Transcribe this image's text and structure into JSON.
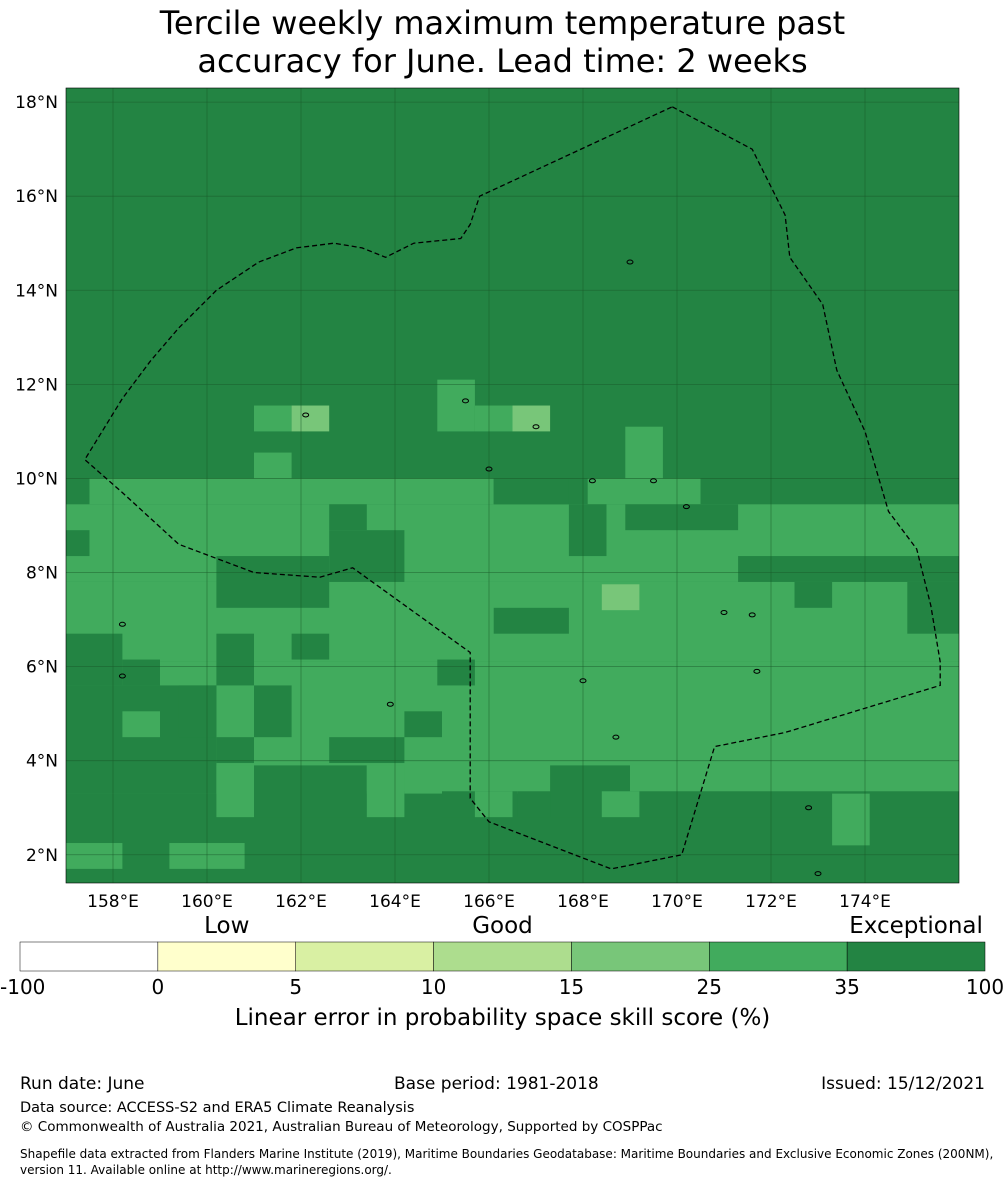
{
  "title": {
    "line1": "Tercile weekly maximum temperature past",
    "line2": "accuracy for June. Lead time: 2 weeks"
  },
  "map": {
    "lon_range": [
      157.0,
      176.0
    ],
    "lat_range": [
      1.4,
      18.3
    ],
    "lon_ticks": [
      "158°E",
      "160°E",
      "162°E",
      "164°E",
      "166°E",
      "168°E",
      "170°E",
      "172°E",
      "174°E"
    ],
    "lat_ticks": [
      "18°N",
      "16°N",
      "14°N",
      "12°N",
      "10°N",
      "8°N",
      "6°N",
      "4°N",
      "2°N"
    ],
    "grid": true,
    "background_category": 6,
    "eez_boundary_lonlat": [
      [
        169.9,
        17.9
      ],
      [
        171.6,
        17.0
      ],
      [
        172.3,
        15.6
      ],
      [
        172.4,
        14.7
      ],
      [
        173.1,
        13.7
      ],
      [
        173.4,
        12.3
      ],
      [
        174.0,
        11.0
      ],
      [
        174.5,
        9.3
      ],
      [
        175.1,
        8.5
      ],
      [
        175.4,
        7.3
      ],
      [
        175.6,
        6.1
      ],
      [
        175.6,
        5.6
      ],
      [
        172.3,
        4.6
      ],
      [
        170.8,
        4.3
      ],
      [
        170.1,
        2.0
      ],
      [
        168.6,
        1.7
      ],
      [
        166.0,
        2.7
      ],
      [
        165.6,
        3.2
      ],
      [
        165.6,
        6.3
      ],
      [
        163.1,
        8.1
      ],
      [
        162.4,
        7.9
      ],
      [
        161.0,
        8.0
      ],
      [
        159.4,
        8.6
      ],
      [
        158.2,
        9.7
      ],
      [
        157.4,
        10.4
      ],
      [
        158.2,
        11.7
      ],
      [
        158.8,
        12.5
      ],
      [
        159.4,
        13.2
      ],
      [
        160.2,
        14.0
      ],
      [
        161.1,
        14.6
      ],
      [
        161.9,
        14.9
      ],
      [
        162.7,
        15.0
      ],
      [
        163.3,
        14.9
      ],
      [
        163.8,
        14.7
      ],
      [
        164.4,
        15.0
      ],
      [
        165.4,
        15.1
      ],
      [
        165.6,
        15.4
      ],
      [
        165.8,
        16.0
      ],
      [
        169.9,
        17.9
      ]
    ],
    "cells": [
      {
        "lon": 161.0,
        "lat": 11.0,
        "w": 0.8,
        "h": 0.55,
        "category": 5
      },
      {
        "lon": 161.8,
        "lat": 11.0,
        "w": 0.8,
        "h": 0.55,
        "category": 4
      },
      {
        "lon": 164.9,
        "lat": 11.0,
        "w": 0.8,
        "h": 1.1,
        "category": 5
      },
      {
        "lon": 165.7,
        "lat": 11.0,
        "w": 0.8,
        "h": 0.55,
        "category": 5
      },
      {
        "lon": 166.5,
        "lat": 11.0,
        "w": 0.8,
        "h": 0.55,
        "category": 4
      },
      {
        "lon": 168.9,
        "lat": 10.0,
        "w": 0.8,
        "h": 1.1,
        "category": 5
      },
      {
        "lon": 161.0,
        "lat": 10.0,
        "w": 0.8,
        "h": 0.55,
        "category": 5
      },
      {
        "lon": 168.1,
        "lat": 9.45,
        "w": 2.4,
        "h": 0.55,
        "category": 5
      },
      {
        "lon": 157.5,
        "lat": 9.45,
        "w": 8.6,
        "h": 0.55,
        "category": 5
      },
      {
        "lon": 157.0,
        "lat": 7.8,
        "w": 19.0,
        "h": 1.65,
        "category": 5
      },
      {
        "lon": 157.0,
        "lat": 6.1,
        "w": 19.0,
        "h": 1.7,
        "category": 5
      },
      {
        "lon": 157.0,
        "lat": 3.3,
        "w": 19.0,
        "h": 2.8,
        "category": 5
      },
      {
        "lon": 157.0,
        "lat": 2.2,
        "w": 19.0,
        "h": 1.1,
        "category": 5
      },
      {
        "lon": 168.4,
        "lat": 7.2,
        "w": 0.8,
        "h": 0.55,
        "category": 4
      }
    ],
    "dark_cells": [
      {
        "lon": 157.0,
        "lat": 8.35,
        "w": 0.5,
        "h": 0.55
      },
      {
        "lon": 160.2,
        "lat": 7.25,
        "w": 2.4,
        "h": 1.1
      },
      {
        "lon": 162.6,
        "lat": 7.8,
        "w": 1.6,
        "h": 1.1
      },
      {
        "lon": 162.6,
        "lat": 8.9,
        "w": 0.8,
        "h": 0.55
      },
      {
        "lon": 166.1,
        "lat": 9.45,
        "w": 1.6,
        "h": 0.55
      },
      {
        "lon": 167.7,
        "lat": 8.35,
        "w": 0.8,
        "h": 1.1
      },
      {
        "lon": 168.9,
        "lat": 8.9,
        "w": 2.4,
        "h": 0.55
      },
      {
        "lon": 171.3,
        "lat": 7.8,
        "w": 4.7,
        "h": 0.55
      },
      {
        "lon": 172.5,
        "lat": 7.25,
        "w": 0.8,
        "h": 0.55
      },
      {
        "lon": 174.9,
        "lat": 6.7,
        "w": 1.1,
        "h": 1.1
      },
      {
        "lon": 166.1,
        "lat": 6.7,
        "w": 1.6,
        "h": 0.55
      },
      {
        "lon": 157.0,
        "lat": 5.6,
        "w": 1.2,
        "h": 1.1
      },
      {
        "lon": 158.2,
        "lat": 5.6,
        "w": 0.8,
        "h": 0.55
      },
      {
        "lon": 160.2,
        "lat": 5.6,
        "w": 0.8,
        "h": 1.1
      },
      {
        "lon": 161.8,
        "lat": 6.15,
        "w": 0.8,
        "h": 0.55
      },
      {
        "lon": 164.9,
        "lat": 5.6,
        "w": 0.8,
        "h": 0.55
      },
      {
        "lon": 157.0,
        "lat": 3.3,
        "w": 3.2,
        "h": 2.3
      },
      {
        "lon": 159.4,
        "lat": 4.5,
        "w": 0.8,
        "h": 1.1
      },
      {
        "lon": 161.0,
        "lat": 4.5,
        "w": 0.8,
        "h": 1.1
      },
      {
        "lon": 160.2,
        "lat": 3.95,
        "w": 0.8,
        "h": 0.55
      },
      {
        "lon": 162.6,
        "lat": 3.95,
        "w": 1.6,
        "h": 0.55
      },
      {
        "lon": 164.2,
        "lat": 4.5,
        "w": 0.8,
        "h": 0.55
      },
      {
        "lon": 157.0,
        "lat": 1.4,
        "w": 19.0,
        "h": 1.9
      },
      {
        "lon": 161.0,
        "lat": 2.8,
        "w": 2.4,
        "h": 1.1
      },
      {
        "lon": 163.4,
        "lat": 2.8,
        "w": 0.8,
        "h": 0.55
      },
      {
        "lon": 165.0,
        "lat": 2.8,
        "w": 1.6,
        "h": 0.55
      },
      {
        "lon": 166.6,
        "lat": 2.8,
        "w": 0.8,
        "h": 0.55
      },
      {
        "lon": 167.3,
        "lat": 2.8,
        "w": 1.7,
        "h": 1.1
      },
      {
        "lon": 169.0,
        "lat": 2.8,
        "w": 7.0,
        "h": 0.55
      }
    ],
    "light_over_dark": [
      {
        "lon": 158.2,
        "lat": 4.5,
        "w": 0.8,
        "h": 0.55
      },
      {
        "lon": 163.4,
        "lat": 2.8,
        "w": 0.8,
        "h": 1.1
      },
      {
        "lon": 160.2,
        "lat": 2.8,
        "w": 0.8,
        "h": 1.1
      },
      {
        "lon": 165.7,
        "lat": 2.8,
        "w": 0.8,
        "h": 0.55
      },
      {
        "lon": 168.4,
        "lat": 2.8,
        "w": 0.8,
        "h": 0.55
      },
      {
        "lon": 173.3,
        "lat": 2.2,
        "w": 0.8,
        "h": 1.1
      },
      {
        "lon": 174.9,
        "lat": 2.8,
        "w": 0.0,
        "h": 0.0
      },
      {
        "lon": 157.0,
        "lat": 1.7,
        "w": 1.2,
        "h": 0.55
      },
      {
        "lon": 159.2,
        "lat": 1.7,
        "w": 1.6,
        "h": 0.55
      }
    ]
  },
  "colorbar": {
    "categories": [
      {
        "label": "Low",
        "center_index": 1.5
      },
      {
        "label": "Good",
        "center_index": 3.5
      },
      {
        "label": "Exceptional",
        "center_index": 6.5
      }
    ],
    "ticks": [
      "-100",
      "0",
      "5",
      "10",
      "15",
      "25",
      "35",
      "100"
    ],
    "colors": [
      "#ffffff",
      "#ffffcc",
      "#d9f0a3",
      "#addd8e",
      "#78c679",
      "#41ab5d",
      "#238443"
    ],
    "title": "Linear error in probability space skill score (%)"
  },
  "footer": {
    "run_date": "Run date: June",
    "base_period": "Base period: 1981-2018",
    "issued": "Issued: 15/12/2021",
    "data_source": "Data source: ACCESS-S2 and ERA5 Climate Reanalysis",
    "copyright": "© Commonwealth of Australia 2021, Australian Bureau of Meteorology, Supported by COSPPac",
    "shapefile": "Shapefile data extracted from Flanders Marine Institute (2019), Maritime Boundaries Geodatabase: Maritime Boundaries and Exclusive Economic Zones (200NM), version 11. Available online at http://www.marineregions.org/."
  }
}
